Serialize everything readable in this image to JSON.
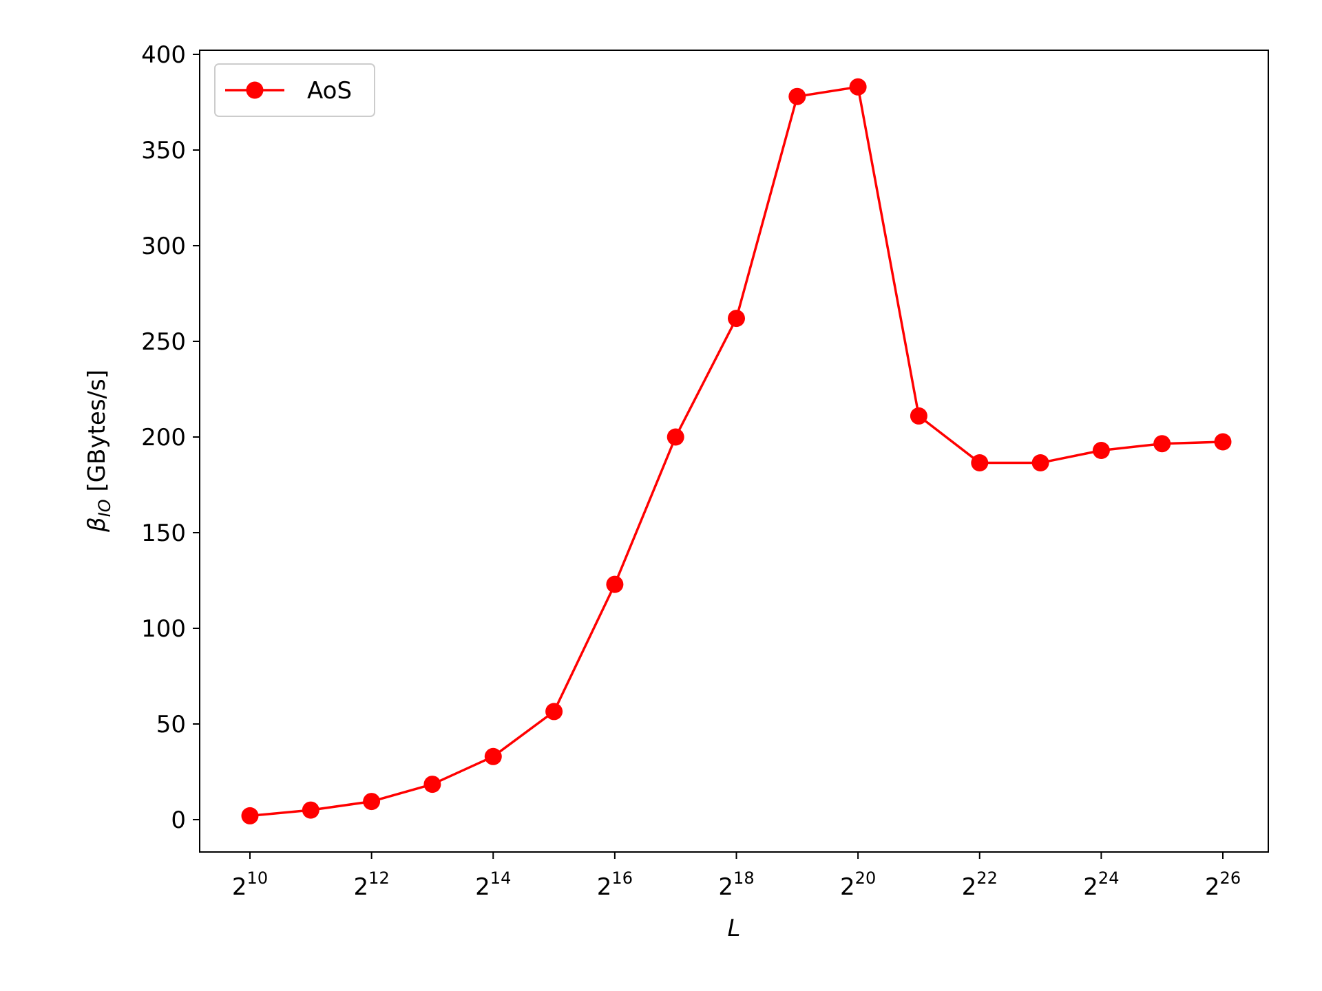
{
  "chart_data": {
    "type": "line",
    "title": "",
    "xlabel": "L",
    "ylabel": "β_IO [GBytes/s]",
    "ylabel_parts": {
      "symbol": "β",
      "subscript": "IO",
      "rest": " [GBytes/s]"
    },
    "x_scale": "log2",
    "x_exponents": [
      10,
      11,
      12,
      13,
      14,
      15,
      16,
      17,
      18,
      19,
      20,
      21,
      22,
      23,
      24,
      25,
      26
    ],
    "x_tick_exponents": [
      10,
      12,
      14,
      16,
      18,
      20,
      22,
      24,
      26
    ],
    "x_tick_base": "2",
    "ylim": [
      -17,
      400
    ],
    "y_ticks": [
      0,
      50,
      100,
      150,
      200,
      250,
      300,
      350,
      400
    ],
    "grid": false,
    "legend_position": "upper-left",
    "series": [
      {
        "name": "AoS",
        "color": "#ff0000",
        "marker": "circle",
        "values": [
          2,
          5,
          9.5,
          18.5,
          33,
          56.5,
          123,
          200,
          262,
          378,
          383,
          211,
          186.5,
          186.5,
          193,
          196.5,
          197.5
        ]
      }
    ]
  }
}
